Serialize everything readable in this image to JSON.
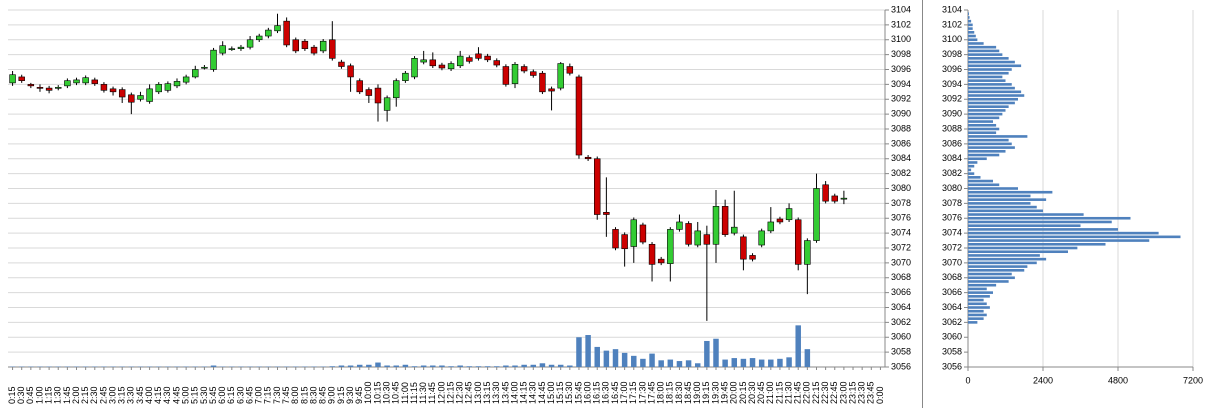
{
  "chart_data": [
    {
      "type": "candlestick",
      "categories": [
        "0:15",
        "0:30",
        "0:45",
        "1:00",
        "1:15",
        "1:30",
        "1:45",
        "2:00",
        "2:15",
        "2:30",
        "2:45",
        "3:00",
        "3:15",
        "3:30",
        "3:45",
        "4:00",
        "4:15",
        "4:30",
        "4:45",
        "5:00",
        "5:15",
        "5:30",
        "5:45",
        "6:00",
        "6:15",
        "6:30",
        "6:45",
        "7:00",
        "7:15",
        "7:30",
        "7:45",
        "8:00",
        "8:15",
        "8:30",
        "8:45",
        "9:00",
        "9:15",
        "9:30",
        "9:45",
        "10:00",
        "10:15",
        "10:30",
        "10:45",
        "11:00",
        "11:15",
        "11:30",
        "11:45",
        "12:00",
        "12:15",
        "12:30",
        "12:45",
        "13:00",
        "13:15",
        "13:30",
        "13:45",
        "14:00",
        "14:15",
        "14:30",
        "14:45",
        "15:00",
        "15:15",
        "15:30",
        "15:45",
        "16:00",
        "16:15",
        "16:30",
        "16:45",
        "17:00",
        "17:15",
        "17:30",
        "17:45",
        "18:00",
        "18:15",
        "18:30",
        "18:45",
        "19:00",
        "19:15",
        "19:30",
        "19:45",
        "20:00",
        "20:15",
        "20:30",
        "20:45",
        "21:00",
        "21:15",
        "21:30",
        "21:45",
        "22:00",
        "22:15",
        "22:30",
        "22:45",
        "23:00",
        "23:15",
        "23:30",
        "23:45",
        "0:00"
      ],
      "open": [
        3094.2,
        3095,
        3094,
        3093.6,
        3093.5,
        3093.6,
        3093.8,
        3094.2,
        3094.2,
        3094.6,
        3094,
        3093.4,
        3093.3,
        3092.6,
        3092,
        3091.7,
        3093,
        3093.2,
        3093.8,
        3094.3,
        3095,
        3096.3,
        3096,
        3098.2,
        3098.8,
        3098.8,
        3099,
        3100,
        3100.5,
        3101.2,
        3102.5,
        3100,
        3099.8,
        3099,
        3098.5,
        3100,
        3097,
        3096.5,
        3094.5,
        3093.3,
        3093.5,
        3090.5,
        3092.2,
        3094.5,
        3095,
        3097,
        3097.3,
        3096.6,
        3096.1,
        3096.5,
        3097.6,
        3098.1,
        3097.8,
        3097.2,
        3096.4,
        3094.1,
        3096.4,
        3095.7,
        3095.5,
        3093.4,
        3093.5,
        3096.4,
        3095,
        3084.2,
        3084,
        3076.8,
        3074.5,
        3073.8,
        3072.2,
        3075.1,
        3072.5,
        3070.5,
        3069.9,
        3074.5,
        3075.3,
        3072.4,
        3073.8,
        3072.5,
        3077.6,
        3074,
        3073.5,
        3071,
        3072.4,
        3074.3,
        3075.9,
        3075.8,
        3075.8,
        3069.8,
        3073,
        3080.5,
        3079,
        3078.7,
        null,
        null,
        null,
        null
      ],
      "high": [
        3095.8,
        3095.3,
        3094.2,
        3094,
        3093.8,
        3093.9,
        3094.8,
        3094.9,
        3095.2,
        3094.9,
        3094.3,
        3093.7,
        3093.6,
        3092.9,
        3093,
        3094,
        3094.3,
        3094.4,
        3094.8,
        3095.3,
        3096.5,
        3096.6,
        3098.9,
        3099.8,
        3099.1,
        3099.3,
        3100.5,
        3100.8,
        3101.6,
        3103.5,
        3103,
        3100.3,
        3100.1,
        3099.3,
        3100.1,
        3102.5,
        3097.3,
        3096.8,
        3094.8,
        3093.6,
        3094,
        3092.5,
        3094.8,
        3095.8,
        3097.8,
        3098.5,
        3098.3,
        3096.9,
        3097.1,
        3098.5,
        3097.9,
        3099,
        3098.1,
        3097.5,
        3096.7,
        3097,
        3096.7,
        3096,
        3095.8,
        3093.7,
        3097,
        3096.8,
        3095.3,
        3084.5,
        3084.3,
        3081.5,
        3074.8,
        3074.1,
        3076.1,
        3075.4,
        3072.8,
        3070.8,
        3074.8,
        3076.5,
        3075.6,
        3075.5,
        3075,
        3079.8,
        3078.5,
        3079.7,
        3073.8,
        3071.3,
        3074.6,
        3077.5,
        3076.2,
        3078,
        3076.1,
        3073.3,
        3082,
        3081,
        3079.3,
        3079.7,
        null,
        null,
        null,
        null
      ],
      "low": [
        3093.8,
        3094.2,
        3093.5,
        3093,
        3092.8,
        3093.2,
        3093.5,
        3093.9,
        3093.9,
        3093.8,
        3092.9,
        3092.5,
        3091.5,
        3090,
        3091.7,
        3091.4,
        3092.7,
        3092.9,
        3093.5,
        3094,
        3094.8,
        3096,
        3095.7,
        3097.9,
        3098.5,
        3098.5,
        3098.7,
        3099.7,
        3100.2,
        3100.9,
        3099,
        3098.2,
        3098.5,
        3097.9,
        3098.2,
        3097.2,
        3096.1,
        3093,
        3092.7,
        3091.5,
        3089,
        3089,
        3091,
        3094.2,
        3094.7,
        3096.7,
        3096.2,
        3095.9,
        3095.8,
        3096.2,
        3096.8,
        3097.2,
        3097,
        3096.3,
        3093.7,
        3093.5,
        3095.5,
        3094.9,
        3092.7,
        3090.5,
        3093.2,
        3095.2,
        3084,
        3083.7,
        3075.8,
        3073.5,
        3071.7,
        3069.5,
        3070,
        3072.5,
        3067.5,
        3069.7,
        3067.5,
        3074.2,
        3072.2,
        3072.1,
        3062.2,
        3070,
        3073.5,
        3073.7,
        3069,
        3070.2,
        3072.1,
        3074,
        3075.2,
        3075.5,
        3069,
        3065.8,
        3072.7,
        3078,
        3078,
        3077.9,
        null,
        null,
        null,
        null
      ],
      "close": [
        3095.3,
        3094.5,
        3093.8,
        3093.5,
        3093.2,
        3093.6,
        3094.5,
        3094.6,
        3094.9,
        3094.1,
        3093.2,
        3093,
        3092.3,
        3091.6,
        3092.5,
        3093.4,
        3094,
        3094.1,
        3094.4,
        3095,
        3096,
        3096.3,
        3098.6,
        3099.2,
        3098.8,
        3099,
        3100,
        3100.5,
        3101.3,
        3101.9,
        3099.3,
        3098.5,
        3098.8,
        3098.2,
        3099.8,
        3097.5,
        3096.4,
        3095,
        3093,
        3092.5,
        3091.5,
        3092.2,
        3094.5,
        3095.5,
        3097.5,
        3097.3,
        3096.5,
        3096.2,
        3096.8,
        3097.8,
        3097.1,
        3097.5,
        3097.3,
        3096.6,
        3094,
        3096.7,
        3095.8,
        3095.2,
        3093,
        3093.1,
        3096.8,
        3095.5,
        3084.5,
        3084,
        3076.5,
        3076.5,
        3072,
        3071.9,
        3075.8,
        3072.8,
        3069.8,
        3070,
        3074.5,
        3075.5,
        3072.5,
        3074.3,
        3072.5,
        3077.6,
        3073.8,
        3074.8,
        3070.5,
        3070.5,
        3074.3,
        3075.5,
        3075.5,
        3077.3,
        3069.8,
        3073,
        3080,
        3078.3,
        3078.3,
        3078.7,
        null,
        null,
        null,
        null
      ],
      "volume": [
        0.05,
        0.05,
        0.05,
        0.05,
        0.05,
        0.05,
        0.05,
        0.05,
        0.05,
        0.05,
        0.05,
        0.05,
        0.05,
        0.05,
        0.05,
        0.05,
        0.05,
        0.05,
        0.05,
        0.05,
        0.05,
        0.05,
        0.2,
        0.05,
        0.05,
        0.05,
        0.05,
        0.05,
        0.05,
        0.05,
        0.05,
        0.05,
        0.05,
        0.05,
        0.05,
        0.1,
        0.2,
        0.2,
        0.3,
        0.3,
        0.6,
        0.2,
        0.2,
        0.3,
        0.1,
        0.2,
        0.2,
        0.2,
        0.1,
        0.2,
        0.1,
        0.1,
        0.1,
        0.1,
        0.2,
        0.2,
        0.3,
        0.3,
        0.5,
        0.3,
        0.3,
        0.2,
        4.0,
        4.3,
        2.7,
        2.2,
        2.4,
        1.9,
        1.5,
        1.1,
        1.8,
        0.9,
        1.0,
        0.8,
        0.9,
        0.5,
        3.5,
        3.8,
        1.0,
        1.2,
        1.1,
        1.2,
        1.0,
        1.0,
        1.1,
        1.3,
        5.6,
        2.4,
        null,
        null,
        null,
        null,
        null,
        null,
        null,
        null
      ],
      "up_color": "#33cc33",
      "down_color": "#cc0000",
      "volume_color": "#4f81bd",
      "ylim": [
        3056,
        3104
      ],
      "yticks": [
        3056,
        3058,
        3060,
        3062,
        3064,
        3066,
        3068,
        3070,
        3072,
        3074,
        3076,
        3078,
        3080,
        3082,
        3084,
        3086,
        3088,
        3090,
        3092,
        3094,
        3096,
        3098,
        3100,
        3102,
        3104
      ],
      "grid": true
    },
    {
      "type": "barh",
      "levels": [
        3062,
        3062.5,
        3063,
        3063.5,
        3064,
        3064.5,
        3065,
        3065.5,
        3066,
        3066.5,
        3067,
        3067.5,
        3068,
        3068.5,
        3069,
        3069.5,
        3070,
        3070.5,
        3071,
        3071.5,
        3072,
        3072.5,
        3073,
        3073.5,
        3074,
        3074.5,
        3075,
        3075.5,
        3076,
        3076.5,
        3077,
        3077.5,
        3078,
        3078.5,
        3079,
        3079.5,
        3080,
        3080.5,
        3081,
        3081.5,
        3082,
        3082.5,
        3083,
        3083.5,
        3084,
        3084.5,
        3085,
        3085.5,
        3086,
        3086.5,
        3087,
        3087.5,
        3088,
        3088.5,
        3089,
        3089.5,
        3090,
        3090.5,
        3091,
        3091.5,
        3092,
        3092.5,
        3093,
        3093.5,
        3094,
        3094.5,
        3095,
        3095.5,
        3096,
        3096.5,
        3097,
        3097.5,
        3098,
        3098.5,
        3099,
        3099.5,
        3100,
        3100.5,
        3101,
        3101.5,
        3102,
        3102.5,
        3103,
        3103.5
      ],
      "values": [
        300,
        500,
        600,
        500,
        700,
        600,
        500,
        700,
        800,
        600,
        900,
        1300,
        1500,
        1400,
        1800,
        1900,
        2200,
        2500,
        2300,
        3200,
        3500,
        4400,
        5800,
        6800,
        6100,
        4800,
        3600,
        4600,
        5200,
        3700,
        2400,
        2200,
        2000,
        2500,
        2000,
        2700,
        1600,
        1000,
        800,
        400,
        200,
        100,
        200,
        300,
        600,
        1000,
        1200,
        1500,
        1400,
        1300,
        1900,
        900,
        1000,
        900,
        800,
        1000,
        1100,
        1200,
        1300,
        1500,
        1600,
        1800,
        1700,
        1500,
        1400,
        1200,
        1100,
        1300,
        1400,
        1700,
        1500,
        1300,
        1100,
        1000,
        900,
        500,
        300,
        250,
        200,
        150,
        150,
        100,
        50,
        30
      ],
      "color": "#4f81bd",
      "xlim": [
        0,
        7200
      ],
      "xticks": [
        0,
        2400,
        4800,
        7200
      ],
      "ylim": [
        3056,
        3104
      ],
      "yticks": [
        3056,
        3058,
        3060,
        3062,
        3064,
        3066,
        3068,
        3070,
        3072,
        3074,
        3076,
        3078,
        3080,
        3082,
        3084,
        3086,
        3088,
        3090,
        3092,
        3094,
        3096,
        3098,
        3100,
        3102,
        3104
      ],
      "grid": true
    }
  ]
}
